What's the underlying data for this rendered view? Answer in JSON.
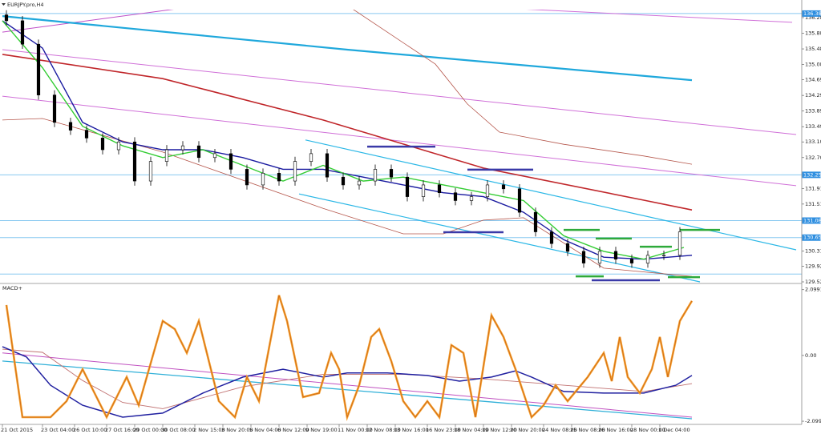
{
  "chart_data": [
    {
      "type": "candlestick",
      "title": "EURJPY.pro,H4",
      "x": [
        1,
        5,
        9,
        13,
        17,
        21,
        25,
        29,
        33,
        37,
        41,
        45,
        49,
        53,
        57,
        61,
        65,
        69,
        73,
        77,
        81,
        85,
        89,
        93,
        97,
        101,
        105,
        109,
        113,
        117,
        121,
        125,
        129,
        133,
        137,
        141,
        145,
        149,
        153,
        157,
        161,
        165,
        169
      ],
      "open": [
        136.35,
        136.2,
        135.6,
        134.3,
        133.6,
        133.4,
        133.2,
        132.9,
        133.1,
        132.1,
        132.6,
        132.9,
        133.0,
        132.7,
        132.8,
        132.4,
        132.0,
        132.3,
        132.1,
        132.6,
        132.8,
        132.2,
        132.0,
        132.1,
        132.4,
        132.2,
        131.7,
        132.0,
        131.8,
        131.6,
        131.7,
        132.0,
        131.9,
        131.3,
        130.8,
        130.5,
        130.3,
        130.0,
        130.3,
        130.1,
        130.0,
        130.2,
        130.2
      ],
      "high": [
        136.47,
        136.32,
        135.72,
        134.42,
        133.72,
        133.52,
        133.32,
        133.22,
        133.22,
        132.72,
        133.02,
        133.12,
        133.12,
        132.92,
        132.92,
        132.52,
        132.42,
        132.42,
        132.72,
        132.92,
        132.92,
        132.32,
        132.22,
        132.52,
        132.52,
        132.32,
        132.12,
        132.12,
        131.92,
        131.82,
        132.12,
        132.12,
        132.02,
        131.42,
        130.92,
        130.62,
        130.42,
        130.42,
        130.42,
        130.22,
        130.32,
        130.32,
        130.92
      ],
      "low": [
        136.08,
        135.48,
        134.18,
        133.48,
        133.28,
        133.08,
        132.78,
        132.78,
        131.98,
        131.98,
        132.48,
        132.78,
        132.58,
        132.58,
        132.28,
        131.88,
        131.88,
        131.98,
        131.98,
        132.48,
        132.08,
        131.88,
        131.88,
        131.98,
        132.08,
        131.58,
        131.58,
        131.68,
        131.48,
        131.48,
        131.58,
        131.78,
        131.18,
        130.68,
        130.38,
        130.18,
        129.88,
        129.88,
        129.98,
        129.88,
        129.88,
        130.08,
        130.08
      ],
      "close": [
        136.2,
        135.6,
        134.3,
        133.6,
        133.4,
        133.2,
        132.9,
        133.1,
        132.1,
        132.6,
        132.9,
        133.0,
        132.7,
        132.8,
        132.4,
        132.0,
        132.3,
        132.1,
        132.6,
        132.8,
        132.2,
        132.0,
        132.1,
        132.4,
        132.2,
        131.7,
        132.0,
        131.8,
        131.6,
        131.7,
        132.0,
        131.9,
        131.3,
        130.8,
        130.5,
        130.3,
        130.0,
        130.3,
        130.1,
        130.0,
        130.2,
        130.2,
        130.8
      ],
      "up_color": "#ffffff",
      "down_color": "#000000",
      "xlim": [
        0,
        200
      ],
      "ylim": [
        129.52,
        136.485
      ],
      "yticks": [
        {
          "value": 136.28,
          "label": "136.280"
        },
        {
          "value": 135.88,
          "label": "135.880"
        },
        {
          "value": 135.48,
          "label": "135.480"
        },
        {
          "value": 135.08,
          "label": "135.080"
        },
        {
          "value": 134.69,
          "label": "134.690"
        },
        {
          "value": 134.29,
          "label": "134.290"
        },
        {
          "value": 133.89,
          "label": "133.890"
        },
        {
          "value": 133.49,
          "label": "133.490"
        },
        {
          "value": 133.1,
          "label": "133.100"
        },
        {
          "value": 132.7,
          "label": "132.700"
        },
        {
          "value": 131.91,
          "label": "131.910"
        },
        {
          "value": 131.51,
          "label": "131.510"
        },
        {
          "value": 130.31,
          "label": "130.310"
        },
        {
          "value": 129.92,
          "label": "129.920"
        },
        {
          "value": 129.52,
          "label": "129.520"
        }
      ],
      "levels": [
        136.384,
        132.258,
        131.087,
        130.652
      ],
      "unlabeled_levels": [
        129.72
      ],
      "level_color": "#87c8f0",
      "level_label_color": "#2f8fe0",
      "lines": [
        {
          "color": "#c050c8",
          "width": 1,
          "x": [
            0,
            60
          ],
          "values": [
            135.91,
            136.73
          ]
        },
        {
          "color": "#d070d8",
          "width": 1,
          "x": [
            84,
            197
          ],
          "values": [
            136.73,
            136.16
          ]
        },
        {
          "color": "#d070d8",
          "width": 1,
          "x": [
            0,
            198
          ],
          "values": [
            135.46,
            133.29
          ]
        },
        {
          "color": "#d070d8",
          "width": 1,
          "x": [
            0,
            198
          ],
          "values": [
            134.27,
            131.98
          ]
        },
        {
          "color": "#2ab7e6",
          "width": 1.2,
          "x": [
            75.6,
            198
          ],
          "values": [
            133.15,
            130.34
          ]
        },
        {
          "color": "#2ab7e6",
          "width": 1.2,
          "x": [
            74,
            174
          ],
          "values": [
            131.77,
            129.52
          ]
        },
        {
          "color": "#1fa8dc",
          "width": 2.2,
          "x": [
            0,
            86,
            172
          ],
          "values": [
            136.32,
            135.46,
            134.68
          ]
        },
        {
          "color": "#c0262a",
          "width": 1.6,
          "x": [
            0,
            40,
            80,
            120,
            160,
            172
          ],
          "values": [
            135.34,
            134.72,
            133.66,
            132.43,
            131.61,
            131.36
          ]
        },
        {
          "color": "#b5564b",
          "width": 0.8,
          "x": [
            84,
            96,
            108,
            116,
            124,
            140,
            160,
            172
          ],
          "values": [
            136.73,
            135.91,
            135.09,
            134.07,
            133.35,
            133.04,
            132.74,
            132.53
          ]
        },
        {
          "color": "#b5564b",
          "width": 0.8,
          "x": [
            0,
            10,
            40,
            80,
            100,
            110,
            120,
            130,
            150,
            172
          ],
          "values": [
            133.66,
            133.7,
            132.84,
            131.4,
            130.75,
            130.75,
            131.1,
            131.16,
            129.87,
            129.66
          ]
        },
        {
          "color": "#1a1aa0",
          "width": 1.4,
          "x": [
            0,
            10,
            20,
            30,
            40,
            50,
            60,
            70,
            80,
            90,
            100,
            110,
            120,
            130,
            140,
            150,
            160,
            172
          ],
          "values": [
            136.2,
            135.5,
            133.6,
            133.1,
            132.9,
            132.9,
            132.7,
            132.4,
            132.4,
            132.2,
            132.0,
            131.8,
            131.7,
            131.3,
            130.6,
            130.15,
            130.1,
            130.2
          ]
        },
        {
          "color": "#33cc33",
          "width": 1.4,
          "x": [
            0,
            10,
            20,
            30,
            40,
            50,
            60,
            70,
            80,
            90,
            100,
            110,
            120,
            130,
            140,
            150,
            160,
            170
          ],
          "values": [
            136.2,
            135.0,
            133.5,
            133.0,
            132.7,
            132.9,
            132.5,
            132.1,
            132.5,
            132.1,
            132.2,
            132.0,
            131.8,
            131.6,
            130.7,
            130.3,
            130.1,
            130.4
          ]
        }
      ],
      "segments": [
        {
          "color": "#3a3aa8",
          "x": [
            91,
            108
          ],
          "values": [
            132.98,
            132.98
          ]
        },
        {
          "color": "#3a3aa8",
          "x": [
            116,
            132.4
          ],
          "values": [
            132.39,
            132.39
          ]
        },
        {
          "color": "#3a3aa8",
          "x": [
            110,
            125
          ],
          "values": [
            130.79,
            130.79
          ]
        },
        {
          "color": "#2eaa3a",
          "x": [
            140,
            149
          ],
          "values": [
            130.85,
            130.85
          ]
        },
        {
          "color": "#2eaa3a",
          "x": [
            148,
            157
          ],
          "values": [
            130.63,
            130.63
          ]
        },
        {
          "color": "#2eaa3a",
          "x": [
            159,
            167
          ],
          "values": [
            130.42,
            130.42
          ]
        },
        {
          "color": "#2eaa3a",
          "x": [
            169,
            179
          ],
          "values": [
            130.85,
            130.85
          ]
        },
        {
          "color": "#2eaa3a",
          "x": [
            143,
            150
          ],
          "values": [
            129.66,
            129.66
          ]
        },
        {
          "color": "#3a3aa8",
          "x": [
            147,
            164
          ],
          "values": [
            129.56,
            129.56
          ]
        },
        {
          "color": "#2eaa3a",
          "x": [
            166,
            174
          ],
          "values": [
            129.64,
            129.64
          ]
        }
      ]
    },
    {
      "type": "line",
      "title": "MACD+",
      "xlim": [
        0,
        200
      ],
      "ylim": [
        -2.2,
        2.22
      ],
      "yticks": [
        2.0991,
        {
          "value": 0,
          "label": "0.00"
        },
        -2.0991
      ],
      "xticks": [
        {
          "value": 0,
          "label": "21 Oct 2015"
        },
        {
          "value": 10,
          "label": "23 Oct 04:00"
        },
        {
          "value": 18,
          "label": "26 Oct 10:00"
        },
        {
          "value": 26,
          "label": "27 Oct 16:00"
        },
        {
          "value": 33,
          "label": "29 Oct 00:00"
        },
        {
          "value": 40,
          "label": "30 Oct 08:00"
        },
        {
          "value": 48,
          "label": "2 Nov 15:00"
        },
        {
          "value": 55,
          "label": "3 Nov 20:00"
        },
        {
          "value": 62,
          "label": "5 Nov 04:00"
        },
        {
          "value": 69,
          "label": "6 Nov 12:00"
        },
        {
          "value": 76,
          "label": "9 Nov 19:00"
        },
        {
          "value": 84,
          "label": "11 Nov 00:00"
        },
        {
          "value": 91,
          "label": "12 Nov 08:00"
        },
        {
          "value": 98,
          "label": "13 Nov 16:00"
        },
        {
          "value": 106,
          "label": "16 Nov 23:00"
        },
        {
          "value": 113,
          "label": "18 Nov 04:00"
        },
        {
          "value": 120,
          "label": "19 Nov 12:00"
        },
        {
          "value": 127,
          "label": "20 Nov 20:00"
        },
        {
          "value": 135,
          "label": "24 Nov 08:00"
        },
        {
          "value": 142,
          "label": "25 Nov 08:00"
        },
        {
          "value": 149,
          "label": "26 Nov 16:00"
        },
        {
          "value": 157,
          "label": "28 Nov 00:00"
        },
        {
          "value": 164,
          "label": "1 Dec 04:00"
        }
      ],
      "series": [
        {
          "color": "#c050c0",
          "width": 1,
          "x": [
            0,
            172
          ],
          "values": [
            0.08,
            -1.97
          ]
        },
        {
          "color": "#30b0d8",
          "width": 1.3,
          "x": [
            0,
            86,
            172
          ],
          "values": [
            -0.18,
            -1.1,
            -2.02
          ]
        },
        {
          "color": "#c07070",
          "width": 0.9,
          "x": [
            0,
            10,
            20,
            30,
            40,
            60,
            80,
            100,
            120,
            140,
            160,
            172
          ],
          "values": [
            0.2,
            0.1,
            -0.8,
            -1.5,
            -1.7,
            -1.0,
            -0.6,
            -0.6,
            -0.75,
            -0.95,
            -1.15,
            -0.9
          ]
        },
        {
          "color": "#2020a0",
          "width": 1.5,
          "x": [
            0,
            6,
            12,
            20,
            30,
            40,
            50,
            60,
            70,
            80,
            86,
            96,
            106,
            114,
            122,
            128,
            132,
            140,
            150,
            160,
            168,
            172
          ],
          "values": [
            0.28,
            -0.05,
            -0.95,
            -1.59,
            -1.97,
            -1.84,
            -1.2,
            -0.69,
            -0.44,
            -0.69,
            -0.56,
            -0.56,
            -0.64,
            -0.82,
            -0.69,
            -0.49,
            -0.69,
            -1.15,
            -1.2,
            -1.2,
            -0.95,
            -0.64
          ]
        },
        {
          "color": "#f5a030",
          "width": 2.6,
          "x": [
            1,
            5,
            12,
            16,
            20,
            26,
            31,
            34,
            40,
            43,
            46,
            49,
            54,
            58,
            61,
            64,
            69,
            71,
            75,
            79,
            82,
            84,
            86,
            89,
            92,
            94,
            97,
            100,
            103,
            106,
            109,
            112,
            115,
            118,
            122,
            125,
            128,
            132,
            135,
            138,
            141,
            146,
            150,
            152,
            154,
            156,
            159,
            162,
            164,
            166,
            169,
            172
          ],
          "values": [
            1.61,
            -1.97,
            -1.97,
            -1.46,
            -0.44,
            -1.97,
            -0.69,
            -1.59,
            1.1,
            0.84,
            0.08,
            1.1,
            -1.46,
            -1.97,
            -0.69,
            -1.46,
            1.92,
            1.1,
            -1.33,
            -1.2,
            0.08,
            -0.44,
            -1.97,
            -0.95,
            0.59,
            0.84,
            -0.18,
            -1.46,
            -1.97,
            -1.46,
            -1.97,
            0.33,
            0.08,
            -1.97,
            1.28,
            0.59,
            -0.44,
            -1.97,
            -1.59,
            -0.95,
            -1.46,
            -0.69,
            0.08,
            -0.82,
            0.59,
            -0.69,
            -1.2,
            -0.44,
            0.59,
            -0.69,
            1.1,
            1.74
          ]
        }
      ]
    }
  ]
}
